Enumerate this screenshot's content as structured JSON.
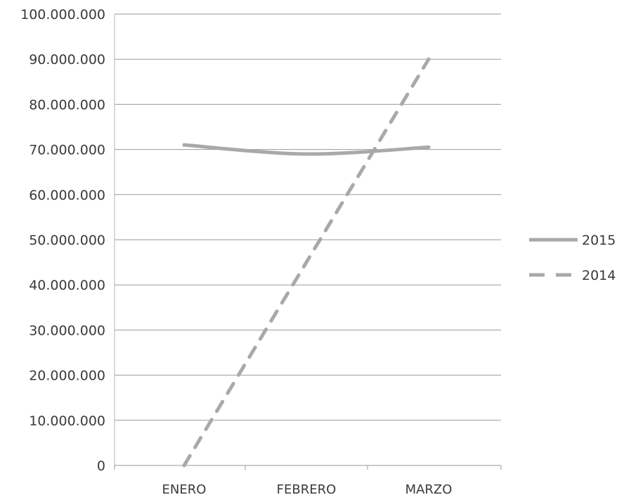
{
  "chart_data": {
    "type": "line",
    "categories": [
      "ENERO",
      "FEBRERO",
      "MARZO"
    ],
    "series": [
      {
        "name": "2015",
        "values": [
          71000000,
          69000000,
          70500000
        ],
        "color": "#a9a9a9",
        "style": "solid"
      },
      {
        "name": "2014",
        "values": [
          0,
          45000000,
          90000000
        ],
        "color": "#a9a9a9",
        "style": "dashed"
      }
    ],
    "ylim": [
      0,
      100000000
    ],
    "yticks": [
      "0",
      "10.000.000",
      "20.000.000",
      "30.000.000",
      "40.000.000",
      "50.000.000",
      "60.000.000",
      "70.000.000",
      "80.000.000",
      "90.000.000",
      "100.000.000"
    ],
    "grid": true,
    "legend": "right",
    "title": "",
    "xlabel": "",
    "ylabel": ""
  }
}
